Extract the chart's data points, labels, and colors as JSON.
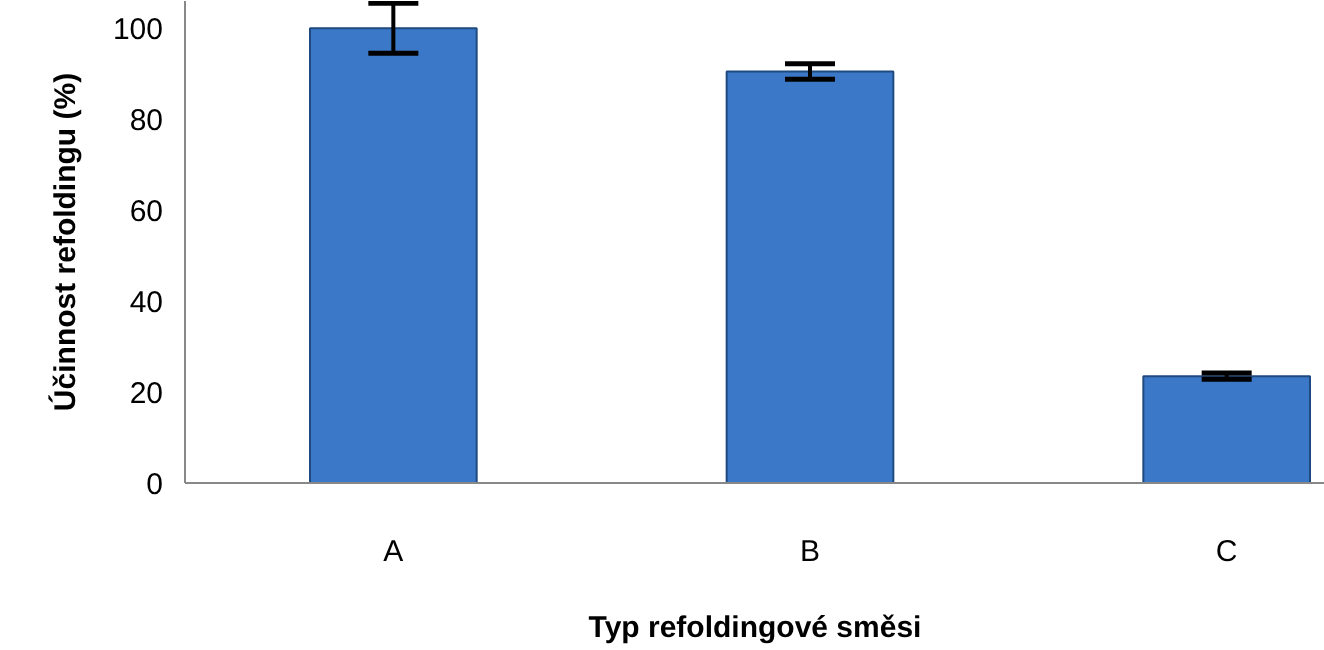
{
  "chart_data": {
    "type": "bar",
    "xlabel": "Typ refoldingové směsi",
    "ylabel": "Účinnost refoldingu (%)",
    "categories": [
      "A",
      "B",
      "C"
    ],
    "values": [
      100,
      90.5,
      23.5
    ],
    "errors": [
      5.5,
      1.7,
      0.7
    ],
    "color": "#3c78c8",
    "ylim": [
      0,
      106
    ],
    "yticks": [
      0,
      20,
      40,
      60,
      80,
      100
    ],
    "grid": false
  }
}
